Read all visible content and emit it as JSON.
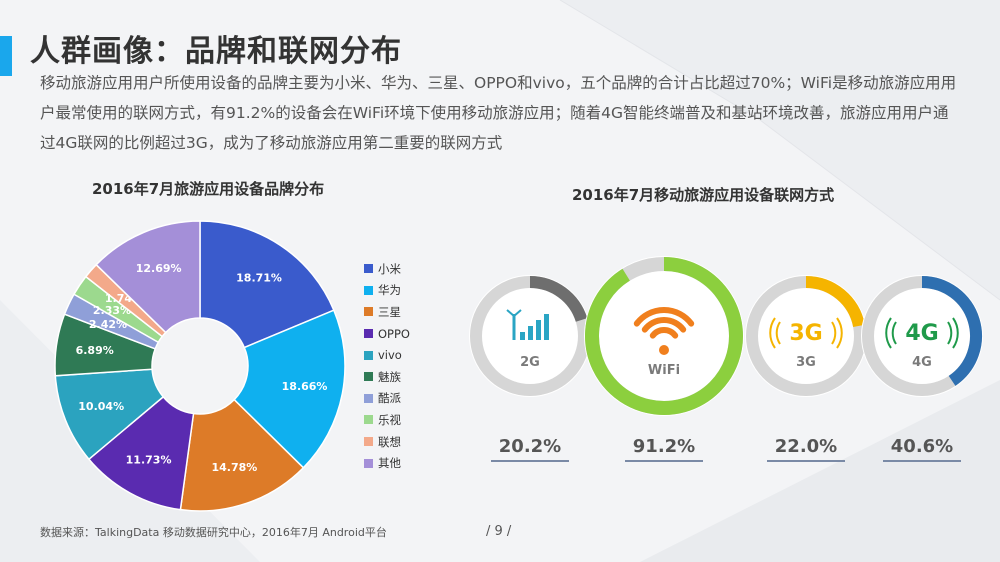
{
  "title": "人群画像：品牌和联网分布",
  "description": "移动旅游应用用户所使用设备的品牌主要为小米、华为、三星、OPPO和vivo，五个品牌的合计占比超过70%；WiFi是移动旅游应用用户最常使用的联网方式，有91.2%的设备会在WiFi环境下使用移动旅游应用；随着4G智能终端普及和基站环境改善，旅游应用用户通过4G联网的比例超过3G，成为了移动旅游应用第二重要的联网方式",
  "source": "数据来源：TalkingData 移动数据研究中心，2016年7月 Android平台",
  "page": "/ 9 /",
  "chart_data": [
    {
      "type": "pie",
      "title": "2016年7月旅游应用设备品牌分布",
      "legend": "right",
      "categories": [
        "小米",
        "华为",
        "三星",
        "OPPO",
        "vivo",
        "魅族",
        "酷派",
        "乐视",
        "联想",
        "其他"
      ],
      "values": [
        18.71,
        18.66,
        14.78,
        11.73,
        10.04,
        6.89,
        2.42,
        2.33,
        1.74,
        12.69
      ],
      "labels": [
        "18.71%",
        "18.66%",
        "14.78%",
        "11.73%",
        "10.04%",
        "6.89%",
        "2.42%",
        "2.33%",
        "1.74%",
        "12.69%"
      ],
      "colors": [
        "#3a5bcc",
        "#0fb0ef",
        "#dd7b28",
        "#5a2bb0",
        "#2ba3bf",
        "#2f7a55",
        "#8f9fd8",
        "#9cd98e",
        "#f3a98a",
        "#a48fd8"
      ]
    },
    {
      "type": "pie",
      "title": "2016年7月移动旅游应用设备联网方式",
      "categories": [
        "2G",
        "WiFi",
        "3G",
        "4G"
      ],
      "values": [
        20.2,
        91.2,
        22.0,
        40.6
      ],
      "labels": [
        "20.2%",
        "91.2%",
        "22.0%",
        "40.6%"
      ],
      "colors": [
        "#6e6e6e",
        "#8ccf3e",
        "#f5b400",
        "#2e6fb0"
      ],
      "icons": [
        "signal-bars-icon",
        "wifi-icon",
        "3g-icon",
        "4g-icon"
      ]
    }
  ]
}
